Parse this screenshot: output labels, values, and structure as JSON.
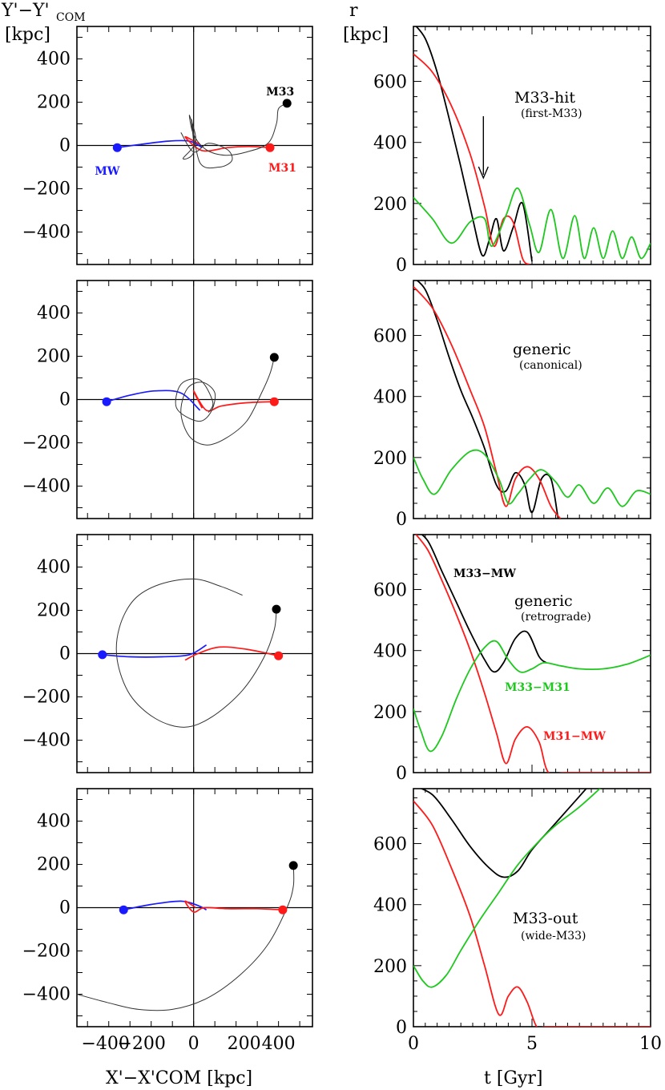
{
  "chart_data": [
    {
      "type": "line",
      "panel": "orbit-1",
      "xlabel": "X'−X'COM [kpc]",
      "ylabel_main": "Y'−Y'",
      "ylabel_sub": "COM",
      "ylabel_unit": "[kpc]",
      "xlim": [
        -550,
        560
      ],
      "ylim": [
        -550,
        550
      ],
      "yticks": [
        -400,
        -200,
        0,
        200,
        400
      ],
      "ytick_labels": [
        "−400",
        "−200",
        "0",
        "200",
        "400"
      ],
      "points": [
        {
          "name": "MW",
          "x": -360,
          "y": -10,
          "color": "#1a1aff"
        },
        {
          "name": "M31",
          "x": 360,
          "y": -10,
          "color": "#ff1a1a"
        },
        {
          "name": "M33",
          "x": 440,
          "y": 195,
          "color": "#000000"
        }
      ],
      "labels": {
        "MW": "MW",
        "M31": "M31",
        "M33": "M33"
      },
      "series": [
        {
          "name": "MW track",
          "color": "#1a1aff",
          "x": [
            -360,
            -250,
            -120,
            -20,
            40
          ],
          "y": [
            -10,
            5,
            20,
            20,
            -10
          ]
        },
        {
          "name": "M31 track",
          "color": "#ff1a1a",
          "x": [
            360,
            260,
            160,
            70,
            20,
            -40,
            30
          ],
          "y": [
            -10,
            -5,
            -10,
            -25,
            -15,
            40,
            5
          ]
        },
        {
          "name": "M33 track",
          "color": "#333333",
          "x": [
            440,
            400,
            390,
            350,
            250,
            150,
            60,
            0,
            -20,
            10,
            -50,
            0,
            -10,
            30,
            120,
            180,
            160,
            70,
            0,
            -60
          ],
          "y": [
            195,
            170,
            100,
            10,
            -30,
            -45,
            -20,
            50,
            140,
            20,
            -60,
            -30,
            120,
            -80,
            -100,
            -70,
            -20,
            10,
            -30,
            60
          ]
        }
      ]
    },
    {
      "type": "line",
      "panel": "r-1",
      "xlabel": "t [Gyr]",
      "ylabel_main": "r",
      "ylabel_unit": "[kpc]",
      "xlim": [
        0,
        10
      ],
      "ylim": [
        0,
        780
      ],
      "yticks": [
        0,
        200,
        400,
        600
      ],
      "ytick_labels": [
        "0",
        "200",
        "400",
        "600"
      ],
      "annotation": "M33-hit",
      "annotation_sub": "(first-M33)",
      "arrow_at_t": 2.95,
      "series": [
        {
          "name": "M33-MW",
          "color": "#000000",
          "t": [
            0,
            0.5,
            1,
            1.5,
            2,
            2.5,
            2.9,
            3.2,
            3.5,
            3.8,
            4.2,
            4.6,
            5
          ],
          "r": [
            790,
            740,
            630,
            480,
            320,
            150,
            30,
            80,
            150,
            45,
            120,
            200,
            10
          ]
        },
        {
          "name": "M31-MW",
          "color": "#ff1a1a",
          "t": [
            0,
            0.8,
            1.6,
            2.4,
            3,
            3.4,
            3.8,
            4.2,
            4.6,
            4.9
          ],
          "r": [
            690,
            630,
            520,
            360,
            190,
            60,
            150,
            140,
            20,
            0
          ]
        },
        {
          "name": "M33-M31",
          "color": "#1ec81e",
          "t": [
            0,
            0.8,
            1.6,
            2.4,
            3,
            3.3,
            3.9,
            4.4,
            4.9,
            5.3,
            5.8,
            6.3,
            6.8,
            7.2,
            7.6,
            8.0,
            8.4,
            8.8,
            9.2,
            9.6,
            10
          ],
          "r": [
            220,
            150,
            70,
            140,
            150,
            60,
            160,
            250,
            130,
            40,
            180,
            20,
            160,
            20,
            120,
            20,
            110,
            20,
            90,
            20,
            70
          ]
        }
      ]
    },
    {
      "type": "line",
      "panel": "orbit-2",
      "xlim": [
        -550,
        560
      ],
      "ylim": [
        -550,
        550
      ],
      "yticks": [
        -400,
        -200,
        0,
        200,
        400
      ],
      "ytick_labels": [
        "−400",
        "−200",
        "0",
        "200",
        "400"
      ],
      "points": [
        {
          "name": "MW",
          "x": -410,
          "y": -10,
          "color": "#1a1aff"
        },
        {
          "name": "M31",
          "x": 380,
          "y": -10,
          "color": "#ff1a1a"
        },
        {
          "name": "M33",
          "x": 380,
          "y": 195,
          "color": "#000000"
        }
      ],
      "series": [
        {
          "name": "MW track",
          "color": "#1a1aff",
          "x": [
            -410,
            -300,
            -180,
            -60,
            30
          ],
          "y": [
            -10,
            20,
            40,
            30,
            -50
          ]
        },
        {
          "name": "M31 track",
          "color": "#ff1a1a",
          "x": [
            380,
            250,
            130,
            60,
            0,
            40
          ],
          "y": [
            -10,
            -15,
            -30,
            -50,
            40,
            -40
          ]
        },
        {
          "name": "M33 track",
          "color": "#333333",
          "x": [
            380,
            360,
            320,
            250,
            150,
            60,
            -20,
            -60,
            -30,
            40,
            100,
            80,
            20,
            -80,
            -60,
            30,
            90,
            70
          ],
          "y": [
            195,
            120,
            30,
            -100,
            -180,
            -210,
            -170,
            -60,
            50,
            80,
            30,
            -60,
            -100,
            -40,
            70,
            90,
            -10,
            -60
          ]
        }
      ]
    },
    {
      "type": "line",
      "panel": "r-2",
      "xlim": [
        0,
        10
      ],
      "ylim": [
        0,
        780
      ],
      "yticks": [
        0,
        200,
        400,
        600
      ],
      "ytick_labels": [
        "0",
        "200",
        "400",
        "600"
      ],
      "annotation": "generic",
      "annotation_sub": "(canonical)",
      "series": [
        {
          "name": "M33-MW",
          "color": "#000000",
          "t": [
            0,
            0.5,
            1,
            1.5,
            2,
            2.5,
            3,
            3.5,
            3.9,
            4.3,
            4.7,
            5.0,
            5.4,
            5.8,
            6.1
          ],
          "r": [
            790,
            750,
            650,
            530,
            420,
            330,
            230,
            110,
            90,
            150,
            110,
            20,
            130,
            130,
            0
          ]
        },
        {
          "name": "M31-MW",
          "color": "#ff1a1a",
          "t": [
            0,
            0.8,
            1.6,
            2.4,
            3,
            3.5,
            3.9,
            4.3,
            4.8,
            5.3,
            5.8,
            6.2
          ],
          "r": [
            760,
            690,
            570,
            420,
            300,
            150,
            40,
            130,
            170,
            130,
            40,
            0
          ]
        },
        {
          "name": "M33-M31",
          "color": "#1ec81e",
          "t": [
            0,
            0.4,
            0.9,
            1.6,
            2.4,
            3.0,
            3.6,
            4.0,
            4.4,
            4.9,
            5.4,
            6.0,
            6.5,
            7.0,
            7.6,
            8.2,
            8.8,
            9.4,
            10
          ],
          "r": [
            200,
            130,
            80,
            160,
            220,
            210,
            130,
            50,
            80,
            130,
            160,
            120,
            70,
            110,
            50,
            100,
            40,
            90,
            80
          ]
        }
      ]
    },
    {
      "type": "line",
      "panel": "orbit-3",
      "xlim": [
        -550,
        560
      ],
      "ylim": [
        -550,
        550
      ],
      "yticks": [
        -400,
        -200,
        0,
        200,
        400
      ],
      "ytick_labels": [
        "−400",
        "−200",
        "0",
        "200",
        "400"
      ],
      "points": [
        {
          "name": "MW",
          "x": -430,
          "y": -5,
          "color": "#1a1aff"
        },
        {
          "name": "M31",
          "x": 400,
          "y": -10,
          "color": "#ff1a1a"
        },
        {
          "name": "M33",
          "x": 390,
          "y": 205,
          "color": "#000000"
        }
      ],
      "series": [
        {
          "name": "MW track",
          "color": "#1a1aff",
          "x": [
            -430,
            -300,
            -150,
            -20,
            60
          ],
          "y": [
            -5,
            -15,
            -15,
            -5,
            40
          ]
        },
        {
          "name": "M31 track",
          "color": "#ff1a1a",
          "x": [
            400,
            250,
            120,
            20,
            -40
          ],
          "y": [
            -10,
            20,
            30,
            0,
            -30
          ]
        },
        {
          "name": "M33 track",
          "color": "#333333",
          "x": [
            390,
            380,
            330,
            230,
            90,
            -40,
            -180,
            -300,
            -360,
            -350,
            -280,
            -160,
            0,
            130,
            230
          ],
          "y": [
            205,
            110,
            -20,
            -170,
            -290,
            -340,
            -300,
            -190,
            -30,
            120,
            250,
            320,
            345,
            310,
            270
          ]
        }
      ]
    },
    {
      "type": "line",
      "panel": "r-3",
      "xlim": [
        0,
        10
      ],
      "ylim": [
        0,
        780
      ],
      "yticks": [
        0,
        200,
        400,
        600
      ],
      "ytick_labels": [
        "0",
        "200",
        "400",
        "600"
      ],
      "annotation": "generic",
      "annotation_sub": "(retrograde)",
      "series_labels": {
        "M33-MW": "M33−MW",
        "M33-M31": "M33−M31",
        "M31-MW": "M31−MW"
      },
      "series": [
        {
          "name": "M33-MW",
          "color": "#000000",
          "t": [
            0,
            0.6,
            1.2,
            1.8,
            2.4,
            3.0,
            3.4,
            3.8,
            4.3,
            4.8,
            5.3,
            5.6
          ],
          "r": [
            800,
            760,
            660,
            560,
            460,
            370,
            330,
            360,
            440,
            460,
            380,
            360
          ]
        },
        {
          "name": "M31-MW",
          "color": "#ff1a1a",
          "t": [
            0,
            0.6,
            1.2,
            1.8,
            2.4,
            3.0,
            3.5,
            3.9,
            4.3,
            4.8,
            5.3,
            5.7,
            6.5,
            10
          ],
          "r": [
            790,
            730,
            630,
            520,
            400,
            260,
            130,
            30,
            110,
            150,
            100,
            0,
            0,
            0
          ]
        },
        {
          "name": "M33-M31",
          "color": "#1ec81e",
          "t": [
            0,
            0.3,
            0.7,
            1.2,
            1.8,
            2.4,
            3.0,
            3.5,
            4.0,
            4.5,
            5.0,
            5.5,
            6.2,
            7.0,
            8.0,
            9.0,
            10
          ],
          "r": [
            210,
            140,
            70,
            120,
            240,
            340,
            410,
            430,
            370,
            330,
            340,
            360,
            350,
            340,
            340,
            355,
            385
          ]
        }
      ]
    },
    {
      "type": "line",
      "panel": "orbit-4",
      "xlabel": "X'−X'COM [kpc]",
      "xticks": [
        -400,
        -200,
        0,
        200,
        400
      ],
      "xtick_labels": [
        "−400",
        "−200",
        "0",
        "200",
        "400"
      ],
      "xlim": [
        -550,
        560
      ],
      "ylim": [
        -550,
        550
      ],
      "yticks": [
        -400,
        -200,
        0,
        200,
        400
      ],
      "ytick_labels": [
        "−400",
        "−200",
        "0",
        "200",
        "400"
      ],
      "points": [
        {
          "name": "MW",
          "x": -330,
          "y": -10,
          "color": "#1a1aff"
        },
        {
          "name": "M31",
          "x": 420,
          "y": -10,
          "color": "#ff1a1a"
        },
        {
          "name": "M33",
          "x": 470,
          "y": 195,
          "color": "#000000"
        }
      ],
      "series": [
        {
          "name": "MW track",
          "color": "#1a1aff",
          "x": [
            -330,
            -200,
            -60,
            20,
            60
          ],
          "y": [
            -10,
            15,
            30,
            10,
            -10
          ]
        },
        {
          "name": "M31 track",
          "color": "#ff1a1a",
          "x": [
            420,
            300,
            160,
            50,
            0,
            -40,
            10
          ],
          "y": [
            -10,
            -5,
            -5,
            0,
            -20,
            30,
            0
          ]
        },
        {
          "name": "M33 track",
          "color": "#333333",
          "x": [
            470,
            470,
            440,
            350,
            220,
            60,
            -100,
            -260,
            -400,
            -550
          ],
          "y": [
            195,
            100,
            0,
            -170,
            -310,
            -420,
            -470,
            -470,
            -440,
            -400
          ]
        }
      ]
    },
    {
      "type": "line",
      "panel": "r-4",
      "xlabel": "t [Gyr]",
      "xlim": [
        0,
        10
      ],
      "xticks": [
        0,
        5,
        10
      ],
      "xtick_labels": [
        "0",
        "5",
        "10"
      ],
      "ylim": [
        0,
        780
      ],
      "yticks": [
        0,
        200,
        400,
        600
      ],
      "ytick_labels": [
        "0",
        "200",
        "400",
        "600"
      ],
      "annotation": "M33-out",
      "annotation_sub": "(wide-M33)",
      "series": [
        {
          "name": "M33-MW",
          "color": "#000000",
          "t": [
            0,
            0.8,
            1.6,
            2.4,
            3.2,
            3.8,
            4.4,
            5.0,
            5.8,
            6.6,
            7.4
          ],
          "r": [
            790,
            760,
            680,
            590,
            520,
            490,
            510,
            580,
            650,
            720,
            790
          ]
        },
        {
          "name": "M31-MW",
          "color": "#ff1a1a",
          "t": [
            0,
            0.8,
            1.6,
            2.4,
            3.0,
            3.6,
            4.0,
            4.4,
            4.8,
            5.2,
            5.6,
            7,
            10
          ],
          "r": [
            740,
            660,
            520,
            360,
            200,
            40,
            100,
            130,
            80,
            0,
            0,
            0,
            0
          ]
        },
        {
          "name": "M33-M31",
          "color": "#1ec81e",
          "t": [
            0,
            0.4,
            0.8,
            1.4,
            2.0,
            2.8,
            3.6,
            4.4,
            5.2,
            6.0,
            7.0,
            8.0
          ],
          "r": [
            200,
            150,
            130,
            170,
            250,
            350,
            440,
            530,
            600,
            660,
            720,
            790
          ]
        }
      ]
    }
  ]
}
